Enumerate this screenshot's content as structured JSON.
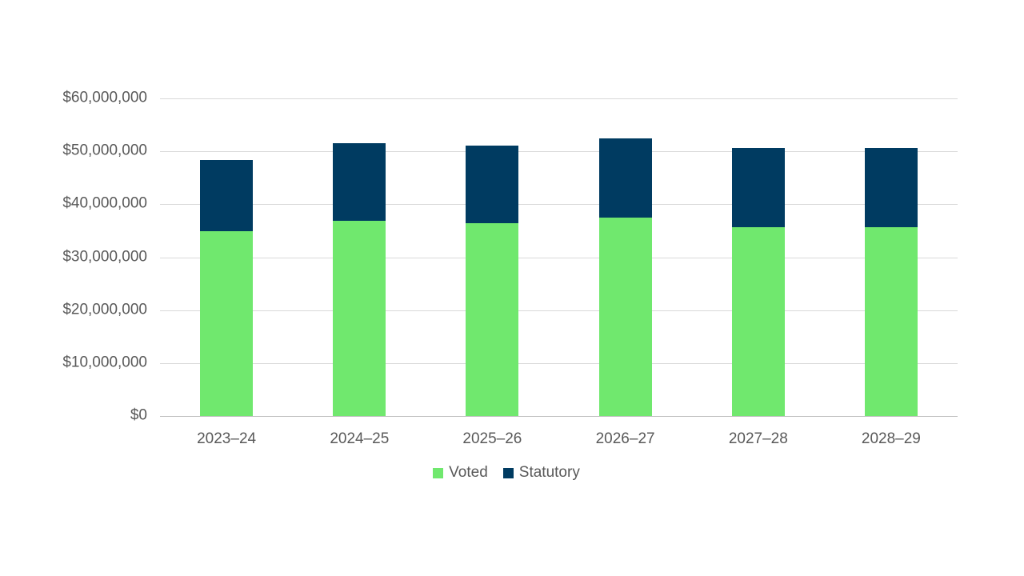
{
  "chart_data": {
    "type": "bar",
    "stacked": true,
    "title": "",
    "xlabel": "",
    "ylabel": "",
    "categories": [
      "2023–24",
      "2024–25",
      "2025–26",
      "2026–27",
      "2027–28",
      "2028–29"
    ],
    "series": [
      {
        "name": "Voted",
        "color": "#70e86e",
        "values": [
          34900000,
          36900000,
          36500000,
          37500000,
          35700000,
          35700000
        ]
      },
      {
        "name": "Statutory",
        "color": "#003b61",
        "values": [
          13500000,
          14600000,
          14600000,
          15000000,
          15000000,
          15000000
        ]
      }
    ],
    "totals": [
      48400000,
      51500000,
      51100000,
      52500000,
      50700000,
      50700000
    ],
    "ylim": [
      0,
      60000000
    ],
    "ytick_step": 10000000,
    "yticks": [
      {
        "value": 0,
        "label": "$0"
      },
      {
        "value": 10000000,
        "label": "$10,000,000"
      },
      {
        "value": 20000000,
        "label": "$20,000,000"
      },
      {
        "value": 30000000,
        "label": "$30,000,000"
      },
      {
        "value": 40000000,
        "label": "$40,000,000"
      },
      {
        "value": 50000000,
        "label": "$50,000,000"
      },
      {
        "value": 60000000,
        "label": "$60,000,000"
      }
    ],
    "grid": true,
    "legend_position": "bottom",
    "colors": {
      "gridline": "#d9d9d9",
      "axis_line": "#bfbfbf",
      "label_text": "#595959",
      "background": "#ffffff"
    }
  },
  "legend": {
    "items": [
      {
        "label": "Voted",
        "color": "#70e86e"
      },
      {
        "label": "Statutory",
        "color": "#003b61"
      }
    ]
  }
}
